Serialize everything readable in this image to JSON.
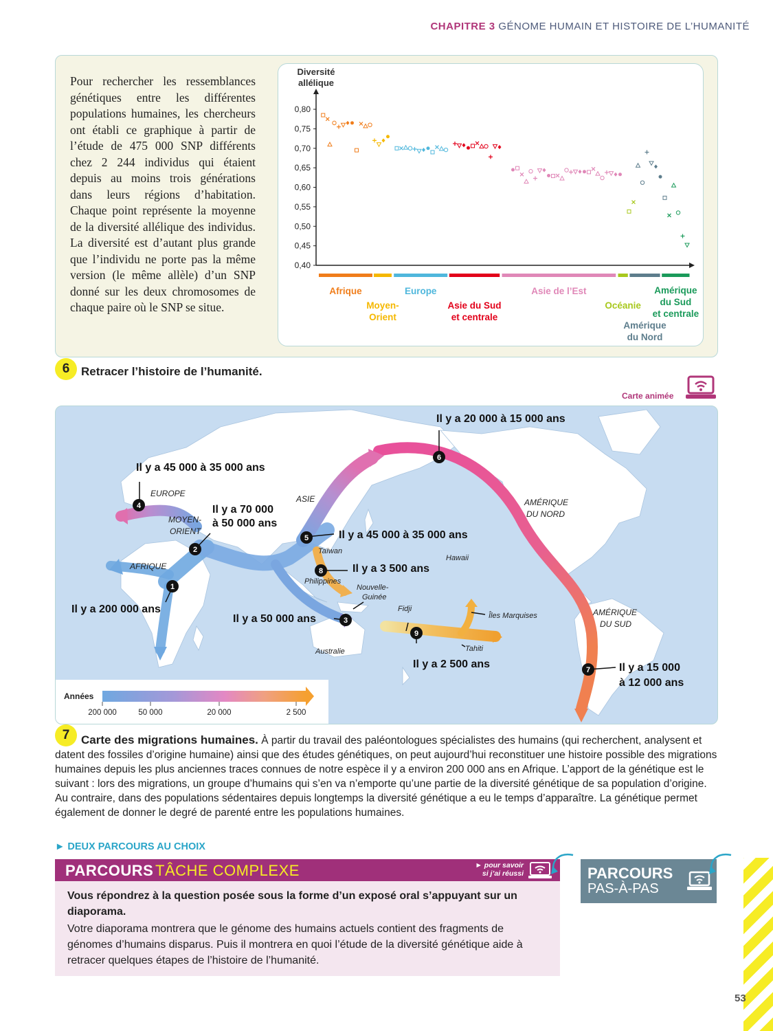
{
  "header": {
    "chapter": "CHAPITRE 3",
    "title": "GÉNOME HUMAIN ET HISTOIRE DE L’HUMANITÉ"
  },
  "intro": {
    "text": "Pour rechercher les ressemblances génétiques entre les différentes populations humaines, les chercheurs ont établi ce graphique à partir de l’étude de 475 000 SNP différents chez 2 244 individus qui étaient depuis au moins trois générations dans leurs régions d’habitation. Chaque point représente la moyenne de la diversité allélique des individus. La diversité est d’autant plus grande que l’individu ne porte pas la même version (le même allèle) d’un SNP donné sur les deux chromosomes de chaque paire où le SNP se situe."
  },
  "chart_data": {
    "type": "scatter",
    "ylabel": "Diversité allélique",
    "xlabel": "",
    "ylim": [
      0.4,
      0.8
    ],
    "yticks": [
      "0,80",
      "0,75",
      "0,70",
      "0,65",
      "0,60",
      "0,55",
      "0,50",
      "0,45",
      "0,40"
    ],
    "grid": false,
    "series": [
      {
        "name": "Afrique",
        "color": "#f07d1a",
        "points": [
          [
            0.5,
            0.785
          ],
          [
            1.5,
            0.775
          ],
          [
            2,
            0.71
          ],
          [
            3,
            0.765
          ],
          [
            4,
            0.755
          ],
          [
            5,
            0.76
          ],
          [
            6,
            0.765
          ],
          [
            7,
            0.765
          ],
          [
            8,
            0.695
          ],
          [
            9,
            0.763
          ],
          [
            10,
            0.757
          ],
          [
            11,
            0.76
          ]
        ]
      },
      {
        "name": "Moyen-Orient",
        "color": "#f5b800",
        "points": [
          [
            12,
            0.72
          ],
          [
            13,
            0.71
          ],
          [
            14,
            0.72
          ],
          [
            15,
            0.73
          ]
        ]
      },
      {
        "name": "Europe",
        "color": "#4fb7dc",
        "points": [
          [
            17,
            0.7
          ],
          [
            18,
            0.7
          ],
          [
            19,
            0.702
          ],
          [
            20,
            0.7
          ],
          [
            21,
            0.698
          ],
          [
            22,
            0.693
          ],
          [
            23,
            0.696
          ],
          [
            24,
            0.7
          ],
          [
            25,
            0.69
          ],
          [
            26,
            0.703
          ],
          [
            27,
            0.699
          ],
          [
            28,
            0.696
          ]
        ]
      },
      {
        "name": "Asie du Sud et centrale",
        "color": "#e2001a",
        "points": [
          [
            30,
            0.712
          ],
          [
            31,
            0.707
          ],
          [
            32,
            0.708
          ],
          [
            33,
            0.701
          ],
          [
            34,
            0.706
          ],
          [
            35,
            0.713
          ],
          [
            36,
            0.705
          ],
          [
            37,
            0.705
          ],
          [
            38,
            0.678
          ],
          [
            39,
            0.705
          ],
          [
            40,
            0.703
          ]
        ]
      },
      {
        "name": "Asie de l’Est",
        "color": "#e088b8",
        "points": [
          [
            43,
            0.645
          ],
          [
            44,
            0.649
          ],
          [
            45,
            0.633
          ],
          [
            46,
            0.615
          ],
          [
            47,
            0.641
          ],
          [
            48,
            0.623
          ],
          [
            49,
            0.643
          ],
          [
            50,
            0.644
          ],
          [
            51,
            0.63
          ],
          [
            52,
            0.629
          ],
          [
            53,
            0.63
          ],
          [
            54,
            0.623
          ],
          [
            55,
            0.644
          ],
          [
            56,
            0.639
          ],
          [
            57,
            0.64
          ],
          [
            58,
            0.64
          ],
          [
            59,
            0.64
          ],
          [
            60,
            0.639
          ],
          [
            61,
            0.647
          ],
          [
            62,
            0.635
          ],
          [
            63,
            0.624
          ],
          [
            64,
            0.638
          ],
          [
            65,
            0.636
          ],
          [
            66,
            0.633
          ],
          [
            67,
            0.633
          ]
        ]
      },
      {
        "name": "Océanie",
        "color": "#a8c81d",
        "points": [
          [
            69,
            0.538
          ],
          [
            70,
            0.562
          ]
        ]
      },
      {
        "name": "Amérique du Nord",
        "color": "#5d7d8c",
        "points": [
          [
            71,
            0.656
          ],
          [
            72,
            0.612
          ],
          [
            73,
            0.69
          ],
          [
            74,
            0.662
          ],
          [
            75,
            0.653
          ],
          [
            76,
            0.627
          ],
          [
            77,
            0.573
          ]
        ]
      },
      {
        "name": "Amérique du Sud et centrale",
        "color": "#1a9a5a",
        "points": [
          [
            78,
            0.528
          ],
          [
            79,
            0.605
          ],
          [
            80,
            0.535
          ],
          [
            81,
            0.475
          ],
          [
            82,
            0.452
          ]
        ]
      }
    ]
  },
  "section6": {
    "num": "6",
    "title": "Retracer l’histoire de l’humanité."
  },
  "anim_label": "Carte animée",
  "map": {
    "places": {
      "europe": "EUROPE",
      "asie": "ASIE",
      "moyen_orient_1": "MOYEN-",
      "moyen_orient_2": "ORIENT",
      "afrique": "AFRIQUE",
      "amerique_nord_1": "AMÉRIQUE",
      "amerique_nord_2": "DU NORD",
      "amerique_sud_1": "AMÉRIQUE",
      "amerique_sud_2": "DU SUD",
      "taiwan": "Taïwan",
      "philippines": "Philippines",
      "hawaii": "Hawaii",
      "ng_1": "Nouvelle-",
      "ng_2": "Guinée",
      "fidji": "Fidji",
      "marquises": "Îles Marquises",
      "tahiti": "Tahiti",
      "australie": "Australie"
    },
    "dates": {
      "d1": "Il y a 200 000 ans",
      "d2a": "Il y a 70 000",
      "d2b": "à 50 000 ans",
      "d3": "Il y a 50 000 ans",
      "d4": "Il y a 45 000 à 35 000 ans",
      "d5": "Il y a 45 000 à 35 000 ans",
      "d6": "Il y a 20 000 à 15 000 ans",
      "d7a": "Il y a 15 000",
      "d7b": "à 12 000 ans",
      "d8": "Il y a 3 500 ans",
      "d9": "Il y a 2 500 ans"
    },
    "markers": [
      "1",
      "2",
      "3",
      "4",
      "5",
      "6",
      "7",
      "8",
      "9"
    ],
    "legend": {
      "title": "Années",
      "ticks": [
        "200 000",
        "50 000",
        "20 000",
        "2 500"
      ]
    }
  },
  "section7": {
    "num": "7",
    "lead": "Carte des migrations humaines.",
    "text": " À partir du travail des paléontologues spécialistes des humains (qui recherchent, analysent et datent des fossiles d’origine humaine) ainsi que des études génétiques, on peut aujourd’hui reconstituer une histoire possible des migrations humaines depuis les plus anciennes traces connues de notre espèce il y a environ 200 000 ans en Afrique. L’apport de la génétique est le suivant : lors des migrations, un groupe d’humains qui s’en va n’emporte qu’une partie de la diversité génétique de sa population d’origine. Au contraire, dans des populations sédentaires depuis longtemps la diversité génétique a eu le temps d’apparaître. La génétique permet également de donner le degré de parenté entre les populations humaines."
  },
  "choice": {
    "title": "► DEUX PARCOURS AU CHOIX",
    "parcours_label": "PARCOURS",
    "parcours_type": "TÂCHE COMPLEXE",
    "savoir": "► pour savoir si j’ai réussi",
    "question": "Vous répondrez à la question posée sous la forme d’un exposé oral s’appuyant sur un diaporama.",
    "body": "Votre diaporama montrera que le génome des humains actuels contient des fragments de génomes d’humains disparus. Puis il montrera en quoi l’étude de la diversité génétique aide à retracer quelques étapes de l’histoire de l’humanité.",
    "pas_1": "PARCOURS",
    "pas_2": "PAS-À-PAS"
  },
  "page_number": "53"
}
